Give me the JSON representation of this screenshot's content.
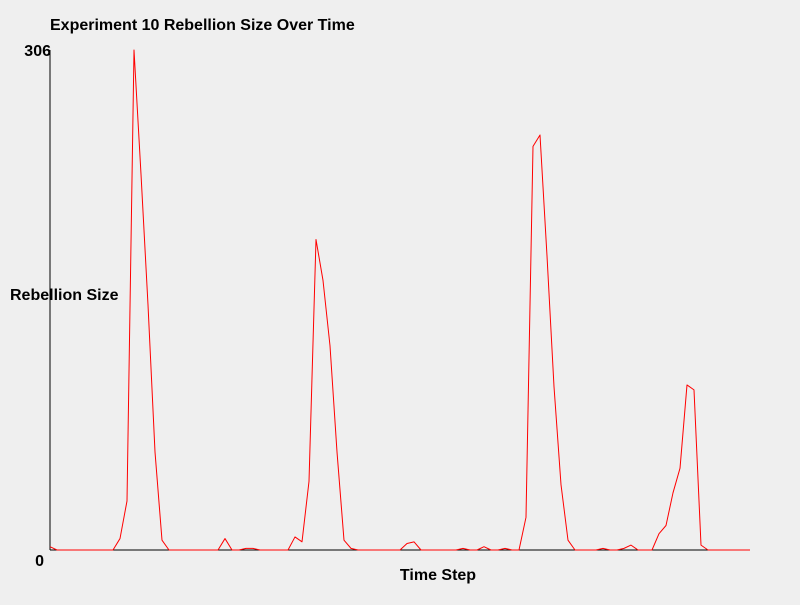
{
  "chart_data": {
    "type": "line",
    "title": "Experiment 10 Rebellion Size Over Time",
    "xlabel": "Time Step",
    "ylabel": "Rebellion Size",
    "ylim": [
      0,
      306
    ],
    "y_tick_labels": [
      "306",
      "0"
    ],
    "grid": false,
    "legend": "none",
    "series": [
      {
        "color": "#ff0000",
        "x": [
          0,
          1,
          2,
          3,
          4,
          5,
          6,
          7,
          8,
          9,
          10,
          11,
          12,
          13,
          14,
          15,
          16,
          17,
          18,
          19,
          20,
          21,
          22,
          23,
          24,
          25,
          26,
          27,
          28,
          29,
          30,
          31,
          32,
          33,
          34,
          35,
          36,
          37,
          38,
          39,
          40,
          41,
          42,
          43,
          44,
          45,
          46,
          47,
          48,
          49,
          50,
          51,
          52,
          53,
          54,
          55,
          56,
          57,
          58,
          59,
          60,
          61,
          62,
          63,
          64,
          65,
          66,
          67,
          68,
          69,
          70,
          71,
          72,
          73,
          74,
          75,
          76,
          77,
          78,
          79,
          80,
          81,
          82,
          83,
          84,
          85,
          86,
          87,
          88,
          89,
          90,
          91,
          92,
          93,
          94,
          95,
          96,
          97,
          98,
          99,
          100
        ],
        "values": [
          2,
          0,
          0,
          0,
          0,
          0,
          0,
          0,
          0,
          0,
          7,
          30,
          306,
          230,
          150,
          60,
          6,
          0,
          0,
          0,
          0,
          0,
          0,
          0,
          0,
          7,
          0,
          0,
          1,
          1,
          0,
          0,
          0,
          0,
          0,
          8,
          5,
          42,
          190,
          165,
          125,
          60,
          6,
          1,
          0,
          0,
          0,
          0,
          0,
          0,
          0,
          4,
          5,
          0,
          0,
          0,
          0,
          0,
          0,
          1,
          0,
          0,
          2,
          0,
          0,
          1,
          0,
          0,
          20,
          247,
          254,
          180,
          100,
          40,
          6,
          0,
          0,
          0,
          0,
          1,
          0,
          0,
          1,
          3,
          0,
          0,
          0,
          10,
          15,
          35,
          50,
          101,
          98,
          3,
          0,
          0,
          0,
          0,
          0,
          0,
          0
        ]
      }
    ]
  },
  "axis_color": "#000000",
  "background_color": "#efefef"
}
